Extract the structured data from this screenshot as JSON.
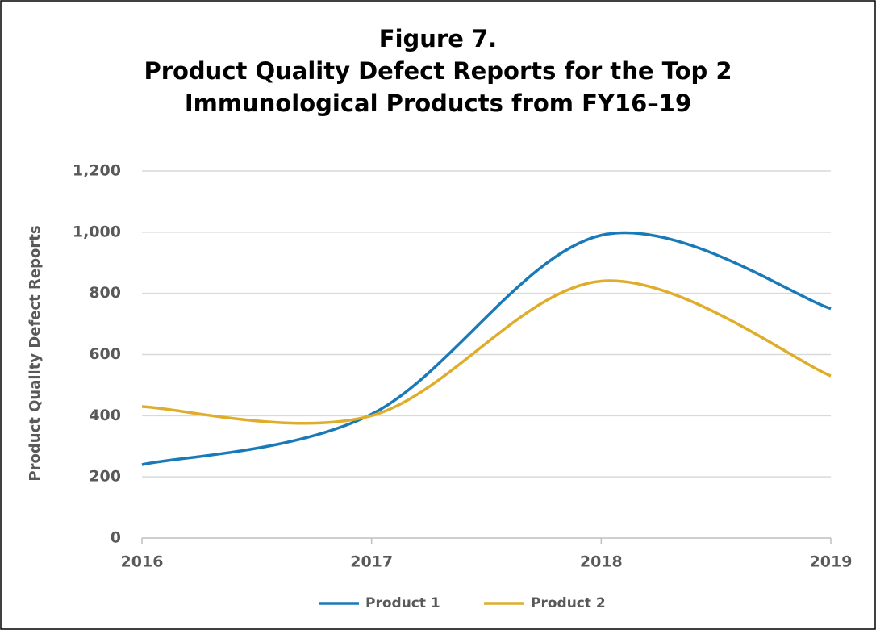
{
  "chart_data": {
    "type": "line",
    "title": [
      "Figure 7.",
      "Product Quality Defect Reports for the Top 2",
      "Immunological Products from FY16–19"
    ],
    "ylabel": "Product Quality Defect Reports",
    "x": [
      2016,
      2017,
      2018,
      2019
    ],
    "xlim": [
      2016,
      2019
    ],
    "xticks": [
      2016,
      2017,
      2018,
      2019
    ],
    "ylim": [
      0,
      1200
    ],
    "yticks": [
      0,
      200,
      400,
      600,
      800,
      {
        "value": 1000,
        "label": "1,000"
      },
      {
        "value": 1200,
        "label": "1,200"
      }
    ],
    "grid": true,
    "legend": "bottom",
    "series": [
      {
        "name": "Product 1",
        "color": "#1a7ab8",
        "values": [
          240,
          405,
          990,
          750
        ]
      },
      {
        "name": "Product 2",
        "color": "#dfad2c",
        "values": [
          430,
          400,
          840,
          530
        ]
      }
    ]
  }
}
